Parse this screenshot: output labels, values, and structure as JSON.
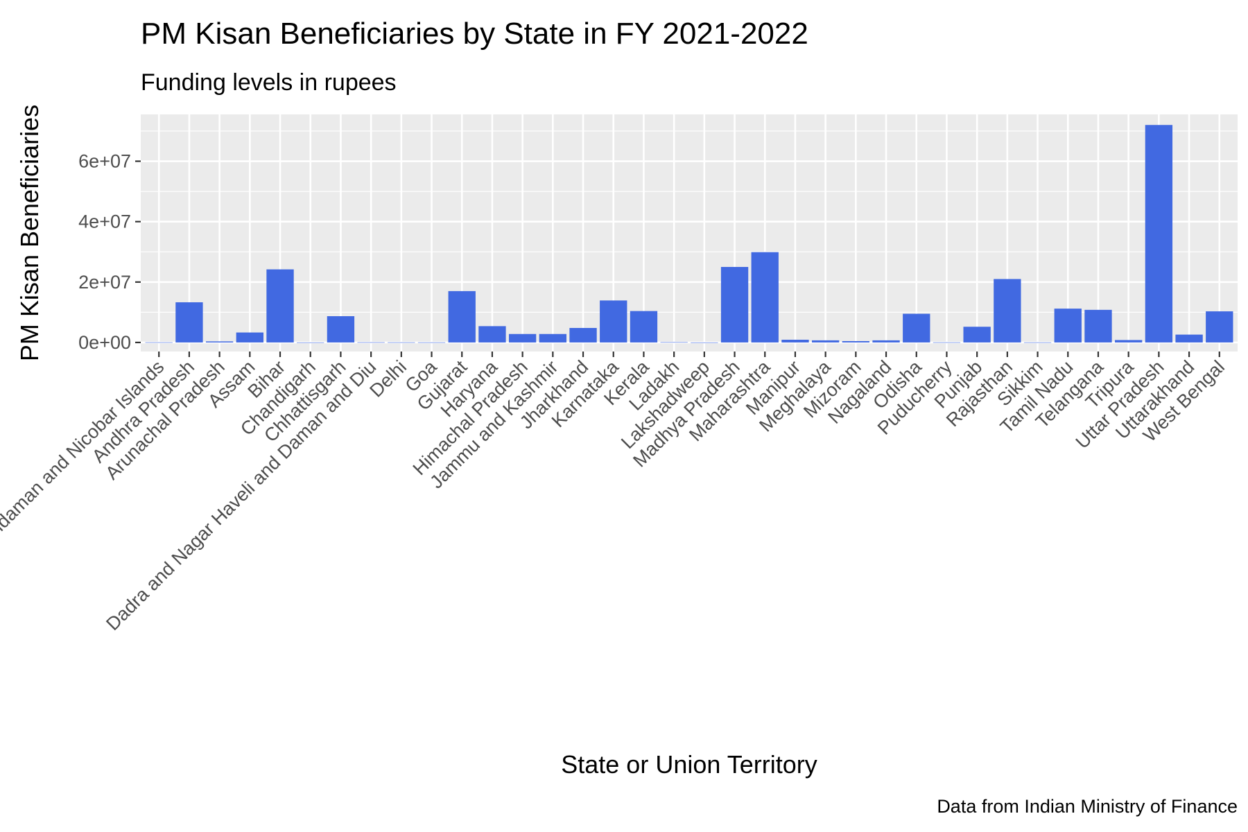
{
  "chart_data": {
    "type": "bar",
    "title": "PM Kisan Beneficiaries by State in FY 2021-2022",
    "subtitle": "Funding levels in rupees",
    "xlabel": "State or Union Territory",
    "ylabel": "PM Kisan Beneficiaries",
    "caption": "Data from Indian Ministry of Finance",
    "categories": [
      "Andaman and Nicobar Islands",
      "Andhra Pradesh",
      "Arunachal Pradesh",
      "Assam",
      "Bihar",
      "Chandigarh",
      "Chhattisgarh",
      "Dadra and Nagar Haveli and Daman and Diu",
      "Delhi",
      "Goa",
      "Gujarat",
      "Haryana",
      "Himachal Pradesh",
      "Jammu and Kashmir",
      "Jharkhand",
      "Karnataka",
      "Kerala",
      "Ladakh",
      "Lakshadweep",
      "Madhya Pradesh",
      "Maharashtra",
      "Manipur",
      "Meghalaya",
      "Mizoram",
      "Nagaland",
      "Odisha",
      "Puducherry",
      "Punjab",
      "Rajasthan",
      "Sikkim",
      "Tamil Nadu",
      "Telangana",
      "Tripura",
      "Uttar Pradesh",
      "Uttarakhand",
      "West Bengal"
    ],
    "values": [
      50000,
      13300000,
      350000,
      3300000,
      24200000,
      5000,
      8700000,
      60000,
      40000,
      30000,
      17000000,
      5400000,
      2800000,
      2800000,
      4800000,
      13900000,
      10400000,
      100000,
      0,
      25000000,
      29900000,
      900000,
      700000,
      450000,
      700000,
      9500000,
      40000,
      5200000,
      21000000,
      30000,
      11200000,
      10800000,
      800000,
      72000000,
      2600000,
      10300000
    ],
    "yticks": [
      0,
      20000000,
      40000000,
      60000000
    ],
    "ytick_labels": [
      "0e+00",
      "2e+07",
      "4e+07",
      "6e+07"
    ],
    "ylim": [
      -3000000,
      75500000
    ],
    "grid": true,
    "colors": {
      "bar": "#4169E1",
      "panel": "#EBEBEB",
      "grid": "#FFFFFF",
      "tick_text": "#4D4D4D"
    }
  }
}
